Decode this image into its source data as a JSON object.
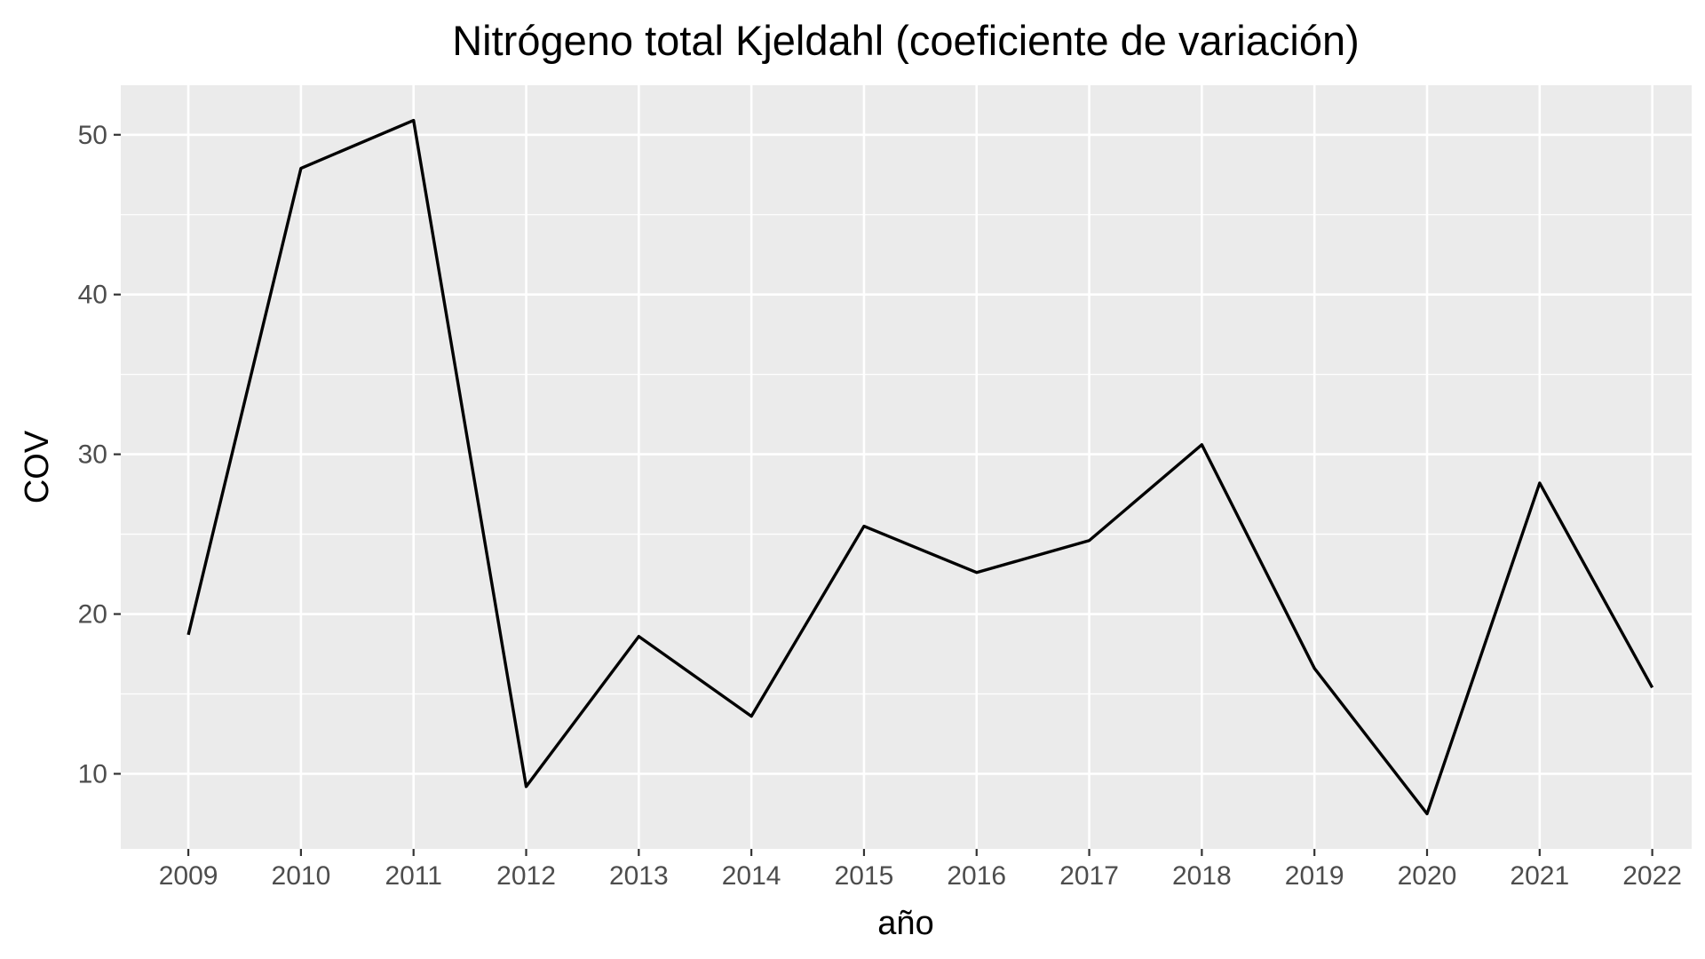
{
  "chart_data": {
    "type": "line",
    "title": "Nitrógeno total Kjeldahl (coeficiente de variación)",
    "xlabel": "año",
    "ylabel": "COV",
    "x": [
      2009,
      2010,
      2011,
      2012,
      2013,
      2014,
      2015,
      2016,
      2017,
      2018,
      2019,
      2020,
      2021,
      2022
    ],
    "x_tick_labels": [
      "2009",
      "2010",
      "2011",
      "2012",
      "2013",
      "2014",
      "2015",
      "2016",
      "2017",
      "2018",
      "2019",
      "2020",
      "2021",
      "2022"
    ],
    "series": [
      {
        "values": [
          18.7,
          47.9,
          50.9,
          9.2,
          18.6,
          13.6,
          25.5,
          22.6,
          24.6,
          30.6,
          16.6,
          7.5,
          28.2,
          15.4
        ],
        "color": "#000000"
      }
    ],
    "y_ticks": [
      10,
      20,
      30,
      40,
      50
    ],
    "y_tick_labels": [
      "10",
      "20",
      "30",
      "40",
      "50"
    ],
    "ylim": [
      5.3,
      53.1
    ],
    "xlim": [
      2008.4,
      2022.35
    ],
    "grid": true,
    "legend": "none",
    "colors": {
      "panel_background": "#EBEBEB",
      "grid": "#FFFFFF",
      "tick_label": "#4D4D4D",
      "text": "#000000",
      "line": "#000000"
    }
  }
}
